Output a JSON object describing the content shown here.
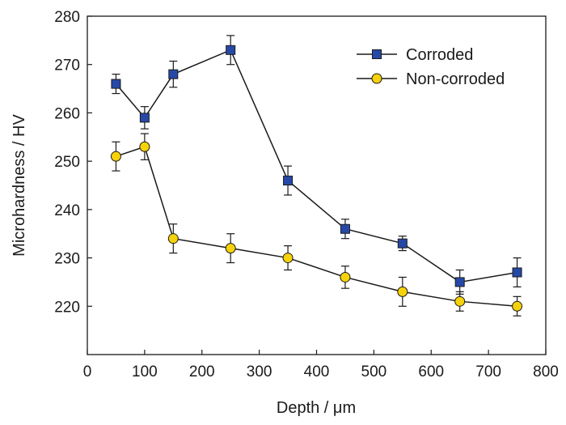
{
  "chart_data": {
    "type": "line",
    "xlabel": "Depth / μm",
    "ylabel": "Microhardness / HV",
    "xlim": [
      0,
      800
    ],
    "ylim": [
      210,
      280
    ],
    "xticks": [
      0,
      100,
      200,
      300,
      400,
      500,
      600,
      700,
      800
    ],
    "yticks": [
      220,
      230,
      240,
      250,
      260,
      270,
      280
    ],
    "grid": false,
    "legend_position": "top-right",
    "series": [
      {
        "name": "Corroded",
        "marker": "square",
        "color": "#2649a8",
        "x": [
          50,
          100,
          150,
          250,
          350,
          450,
          550,
          650,
          750
        ],
        "y": [
          266,
          259,
          268,
          273,
          246,
          236,
          233,
          225,
          227
        ],
        "error": [
          2,
          2.3,
          2.7,
          3,
          3,
          2,
          1.5,
          2.5,
          3
        ]
      },
      {
        "name": "Non-corroded",
        "marker": "circle",
        "color": "#f5d20a",
        "x": [
          50,
          100,
          150,
          250,
          350,
          450,
          550,
          650,
          750
        ],
        "y": [
          251,
          253,
          234,
          232,
          230,
          226,
          223,
          221,
          220
        ],
        "error": [
          3,
          2.7,
          3,
          3,
          2.5,
          2.3,
          3,
          2,
          2
        ]
      }
    ]
  }
}
